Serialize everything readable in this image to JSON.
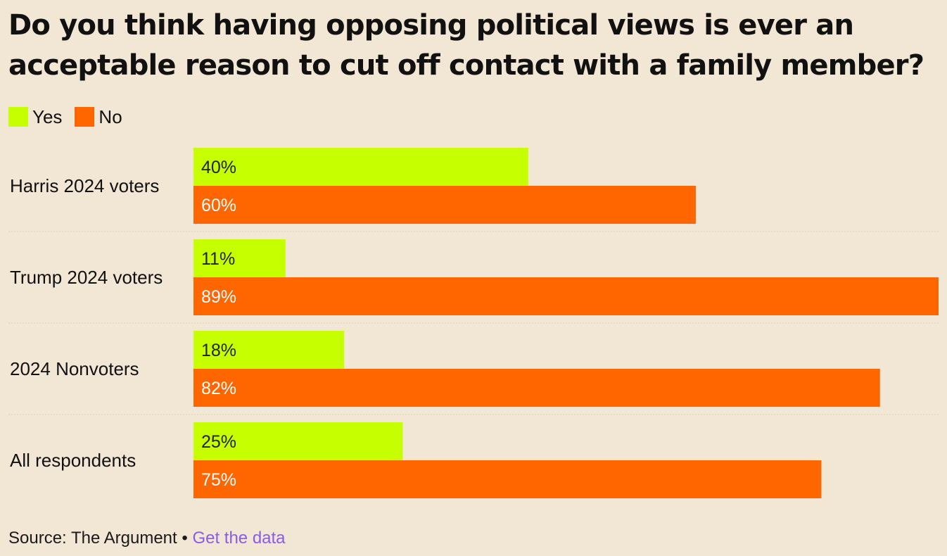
{
  "title": "Do you think having opposing political views is ever an acceptable reason to cut off contact with a family member?",
  "legend": {
    "yes": "Yes",
    "no": "No"
  },
  "colors": {
    "yes": "#c6ff00",
    "no": "#ff6600",
    "background": "#f2e6d5",
    "divider": "#d9cdbd",
    "link": "#8a5ce6"
  },
  "chart_data": {
    "type": "bar",
    "orientation": "horizontal",
    "title": "Do you think having opposing political views is ever an acceptable reason to cut off contact with a family member?",
    "categories": [
      "Harris 2024 voters",
      "Trump 2024 voters",
      "2024 Nonvoters",
      "All respondents"
    ],
    "series": [
      {
        "name": "Yes",
        "values": [
          40,
          11,
          18,
          25
        ],
        "labels": [
          "40%",
          "11%",
          "18%",
          "25%"
        ]
      },
      {
        "name": "No",
        "values": [
          60,
          89,
          82,
          75
        ],
        "labels": [
          "60%",
          "89%",
          "82%",
          "75%"
        ]
      }
    ],
    "xlim": [
      0,
      89
    ],
    "xlabel": "",
    "ylabel": "",
    "grid": false,
    "legend": "top-left"
  },
  "source": {
    "prefix": "Source: The Argument •",
    "link_text": "Get the data"
  }
}
